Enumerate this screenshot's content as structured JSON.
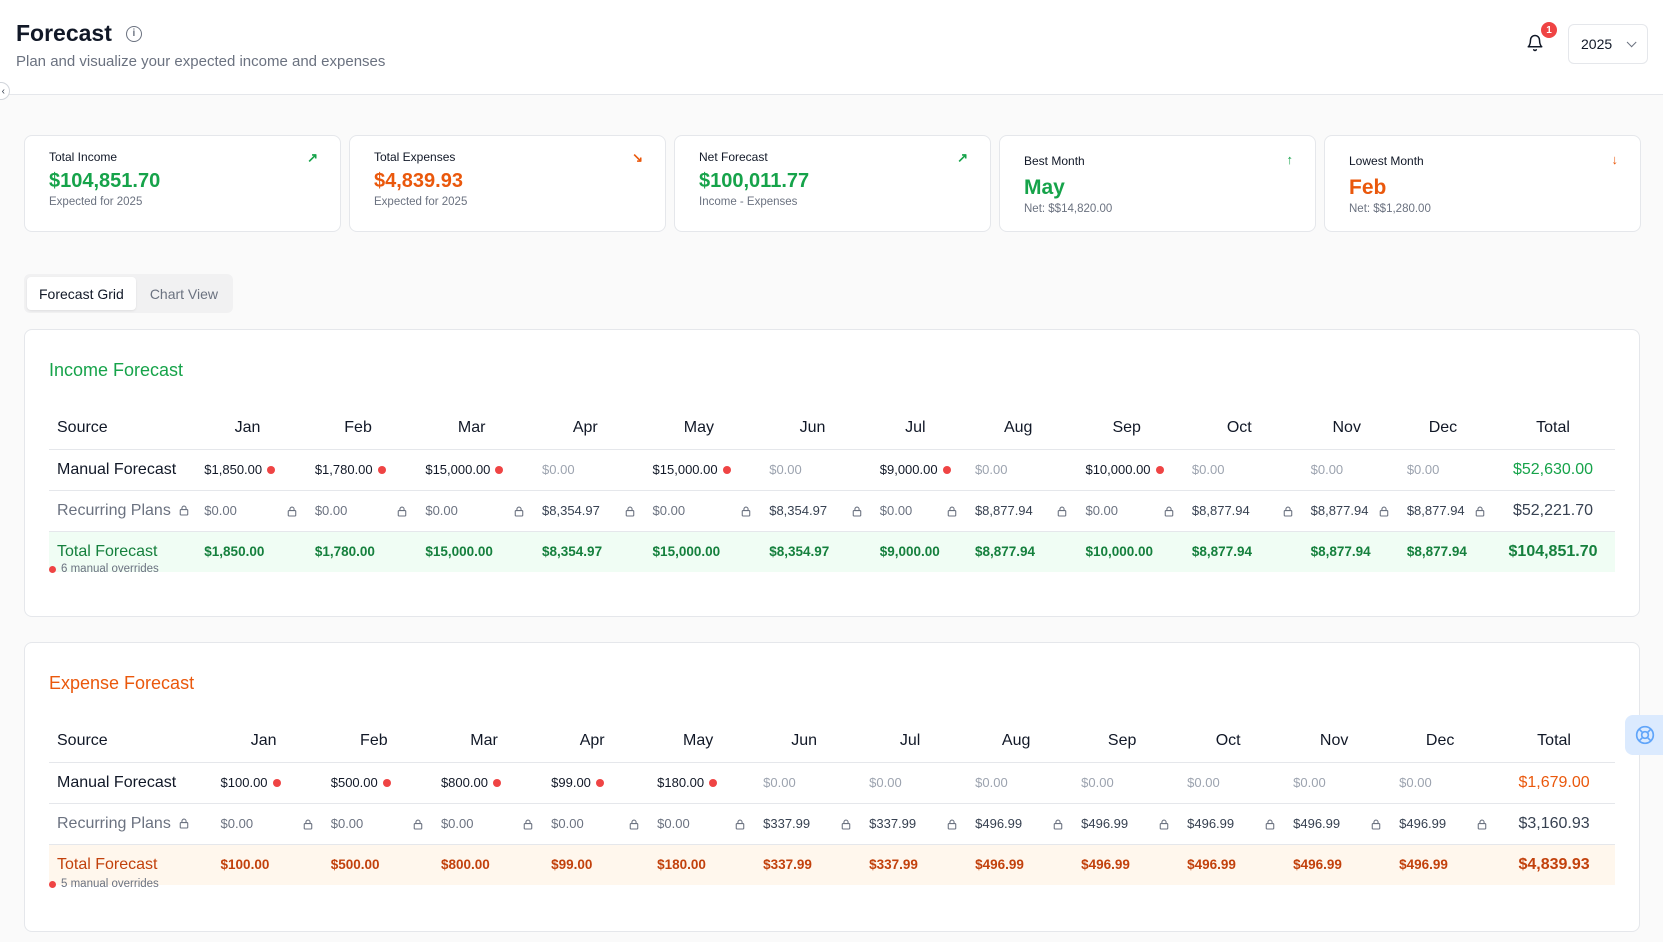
{
  "header": {
    "title": "Forecast",
    "subtitle": "Plan and visualize your expected income and expenses",
    "notification_count": "1",
    "year": "2025"
  },
  "cards": [
    {
      "label": "Total Income",
      "value": "$104,851.70",
      "sub": "Expected for 2025",
      "icon": "trending-up-icon",
      "color": "#16a34a"
    },
    {
      "label": "Total Expenses",
      "value": "$4,839.93",
      "sub": "Expected for 2025",
      "icon": "trending-down-icon",
      "color": "#ea580c"
    },
    {
      "label": "Net Forecast",
      "value": "$100,011.77",
      "sub": "Income - Expenses",
      "icon": "trending-up-icon",
      "color": "#16a34a"
    },
    {
      "label": "Best Month",
      "value": "May",
      "sub": "Net: $$14,820.00",
      "icon": "arrow-up-icon",
      "color": "#16a34a"
    },
    {
      "label": "Lowest Month",
      "value": "Feb",
      "sub": "Net: $$1,280.00",
      "icon": "arrow-down-icon",
      "color": "#ea580c"
    }
  ],
  "tabs": [
    "Forecast Grid",
    "Chart View"
  ],
  "columns": [
    "Source",
    "Jan",
    "Feb",
    "Mar",
    "Apr",
    "May",
    "Jun",
    "Jul",
    "Aug",
    "Sep",
    "Oct",
    "Nov",
    "Dec",
    "Total"
  ],
  "income": {
    "title": "Income Forecast",
    "manual_label": "Manual Forecast",
    "recurring_label": "Recurring Plans",
    "total_label": "Total Forecast",
    "manual": [
      "$1,850.00",
      "$1,780.00",
      "$15,000.00",
      "$0.00",
      "$15,000.00",
      "$0.00",
      "$9,000.00",
      "$0.00",
      "$10,000.00",
      "$0.00",
      "$0.00",
      "$0.00"
    ],
    "manual_override": [
      true,
      true,
      true,
      false,
      true,
      false,
      true,
      false,
      true,
      false,
      false,
      false
    ],
    "manual_total": "$52,630.00",
    "recurring": [
      "$0.00",
      "$0.00",
      "$0.00",
      "$8,354.97",
      "$0.00",
      "$8,354.97",
      "$0.00",
      "$8,877.94",
      "$0.00",
      "$8,877.94",
      "$8,877.94",
      "$8,877.94"
    ],
    "recurring_total": "$52,221.70",
    "totals": [
      "$1,850.00",
      "$1,780.00",
      "$15,000.00",
      "$8,354.97",
      "$15,000.00",
      "$8,354.97",
      "$9,000.00",
      "$8,877.94",
      "$10,000.00",
      "$8,877.94",
      "$8,877.94",
      "$8,877.94"
    ],
    "grand_total": "$104,851.70",
    "overrides_note": "6 manual overrides"
  },
  "expense": {
    "title": "Expense Forecast",
    "manual_label": "Manual Forecast",
    "recurring_label": "Recurring Plans",
    "total_label": "Total Forecast",
    "manual": [
      "$100.00",
      "$500.00",
      "$800.00",
      "$99.00",
      "$180.00",
      "$0.00",
      "$0.00",
      "$0.00",
      "$0.00",
      "$0.00",
      "$0.00",
      "$0.00"
    ],
    "manual_override": [
      true,
      true,
      true,
      true,
      true,
      false,
      false,
      false,
      false,
      false,
      false,
      false
    ],
    "manual_total": "$1,679.00",
    "recurring": [
      "$0.00",
      "$0.00",
      "$0.00",
      "$0.00",
      "$0.00",
      "$337.99",
      "$337.99",
      "$496.99",
      "$496.99",
      "$496.99",
      "$496.99",
      "$496.99"
    ],
    "recurring_total": "$3,160.93",
    "totals": [
      "$100.00",
      "$500.00",
      "$800.00",
      "$99.00",
      "$180.00",
      "$337.99",
      "$337.99",
      "$496.99",
      "$496.99",
      "$496.99",
      "$496.99",
      "$496.99"
    ],
    "grand_total": "$4,839.93",
    "overrides_note": "5 manual overrides"
  },
  "colors": {
    "income": "#16a34a",
    "expense": "#ea580c",
    "override_dot": "#ef4444"
  }
}
